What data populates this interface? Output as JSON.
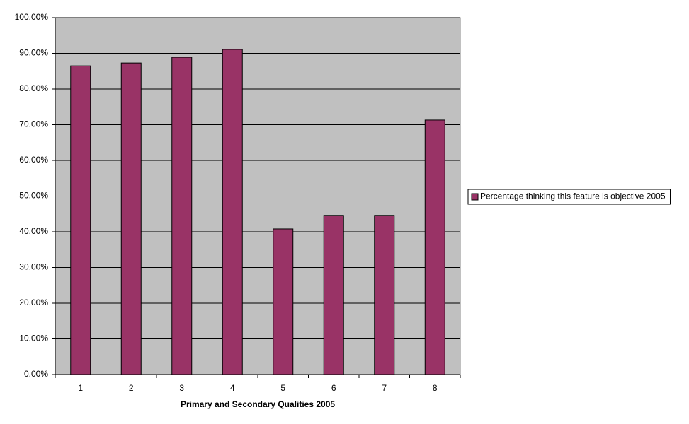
{
  "chart_data": {
    "type": "bar",
    "x_label": "Primary and Secondary Qualities 2005",
    "categories": [
      "1",
      "2",
      "3",
      "4",
      "5",
      "6",
      "7",
      "8"
    ],
    "series": [
      {
        "name": "Percentage thinking this feature is objective 2005",
        "color": "#993366",
        "values": [
          86.5,
          87.3,
          88.9,
          91.1,
          40.8,
          44.6,
          44.6,
          71.3
        ]
      }
    ],
    "ylim": [
      0,
      100
    ],
    "yticks": [
      {
        "value": 0,
        "label": "0.00%"
      },
      {
        "value": 10,
        "label": "10.00%"
      },
      {
        "value": 20,
        "label": "20.00%"
      },
      {
        "value": 30,
        "label": "30.00%"
      },
      {
        "value": 40,
        "label": "40.00%"
      },
      {
        "value": 50,
        "label": "50.00%"
      },
      {
        "value": 60,
        "label": "60.00%"
      },
      {
        "value": 70,
        "label": "70.00%"
      },
      {
        "value": 80,
        "label": "80.00%"
      },
      {
        "value": 90,
        "label": "90.00%"
      },
      {
        "value": 100,
        "label": "100.00%"
      }
    ],
    "grid": true,
    "legend": "right"
  }
}
